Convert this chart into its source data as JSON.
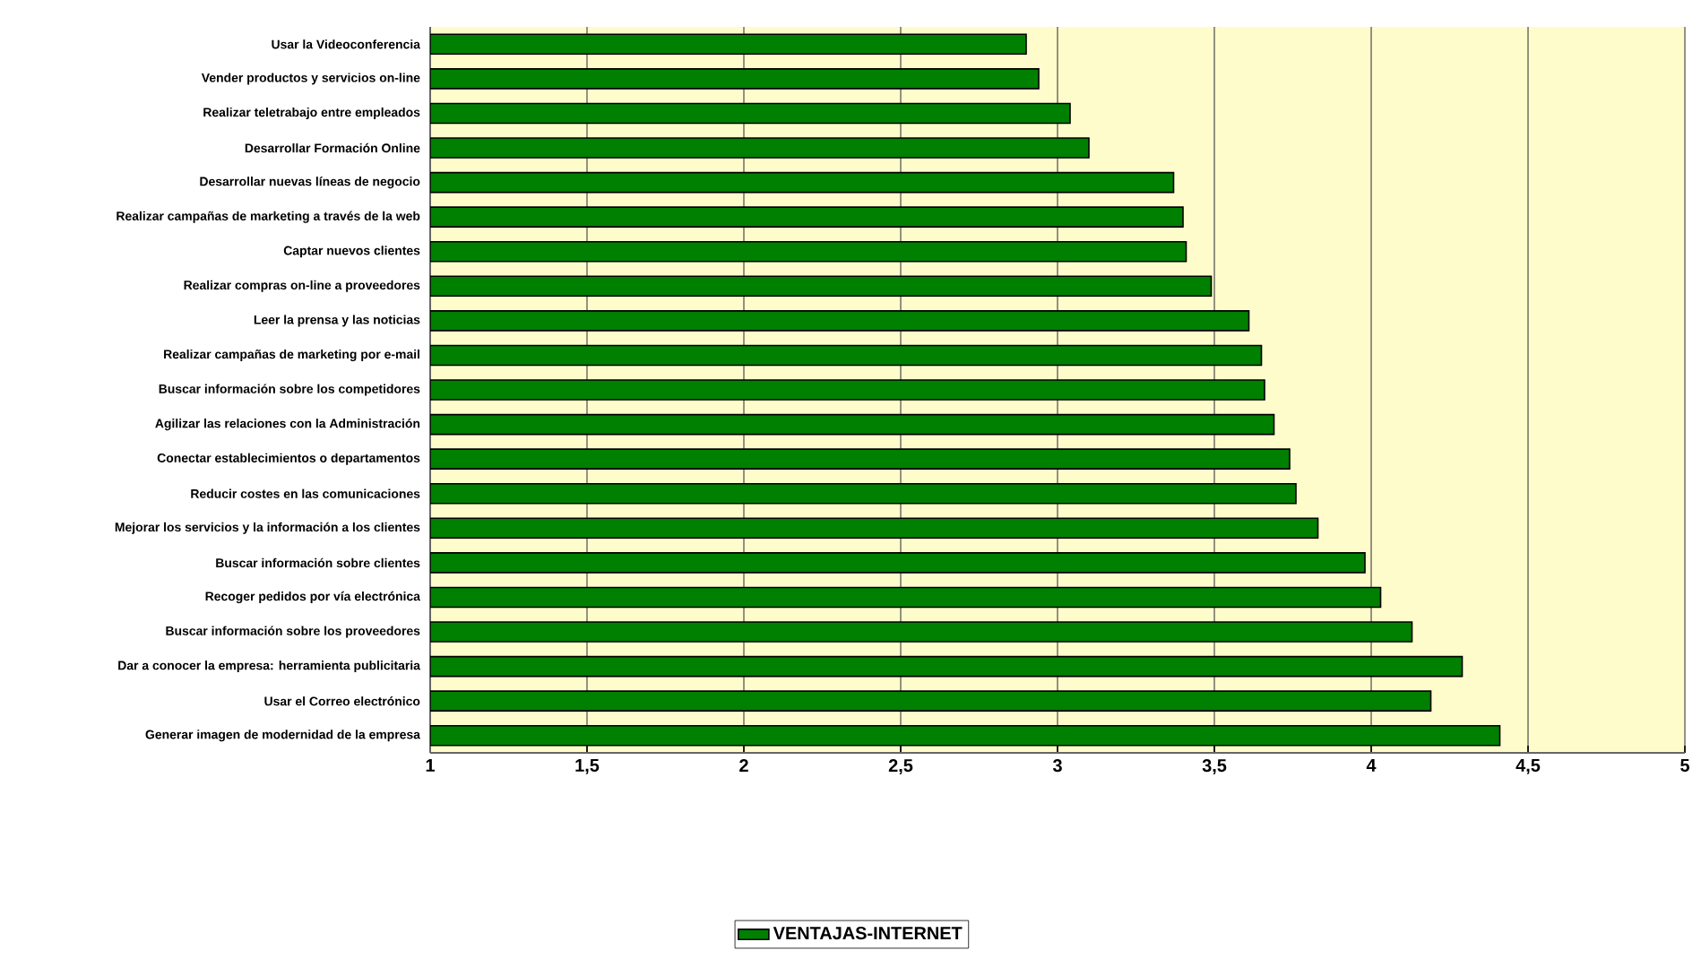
{
  "chart_data": {
    "type": "bar",
    "orientation": "horizontal",
    "categories": [
      "Usar la Videoconferencia",
      "Vender productos y servicios on-line",
      "Realizar teletrabajo entre empleados",
      "Desarrollar Formación Online",
      "Desarrollar nuevas líneas de negocio",
      "Realizar campañas de marketing a través de la web",
      "Captar nuevos clientes",
      "Realizar compras on-line a proveedores",
      "Leer la prensa y las noticias",
      "Realizar campañas de marketing por e-mail",
      "Buscar información sobre los competidores",
      "Agilizar las relaciones con la Administración",
      "Conectar establecimientos o departamentos",
      "Reducir costes en las comunicaciones",
      "Mejorar los servicios y la información a los clientes",
      "Buscar información sobre clientes",
      "Recoger pedidos por vía electrónica",
      "Buscar información sobre los proveedores",
      "Dar a conocer la empresa: herramienta publicitaria",
      "Usar el Correo electrónico",
      "Generar imagen de  modernidad de la empresa"
    ],
    "series": [
      {
        "name": "VENTAJAS-INTERNET",
        "color": "#008000",
        "values": [
          2.9,
          2.94,
          3.04,
          3.1,
          3.37,
          3.4,
          3.41,
          3.49,
          3.61,
          3.65,
          3.66,
          3.69,
          3.74,
          3.76,
          3.83,
          3.98,
          4.03,
          4.13,
          4.29,
          4.19,
          4.41
        ]
      }
    ],
    "xlim": [
      1,
      5
    ],
    "xticks": [
      1,
      {
        "value": 1.5,
        "label": "1,5"
      },
      2,
      {
        "value": 2.5,
        "label": "2,5"
      },
      3,
      {
        "value": 3.5,
        "label": "3,5"
      },
      4,
      {
        "value": 4.5,
        "label": "4,5"
      },
      5
    ],
    "grid": "x",
    "legend": "bottom"
  }
}
